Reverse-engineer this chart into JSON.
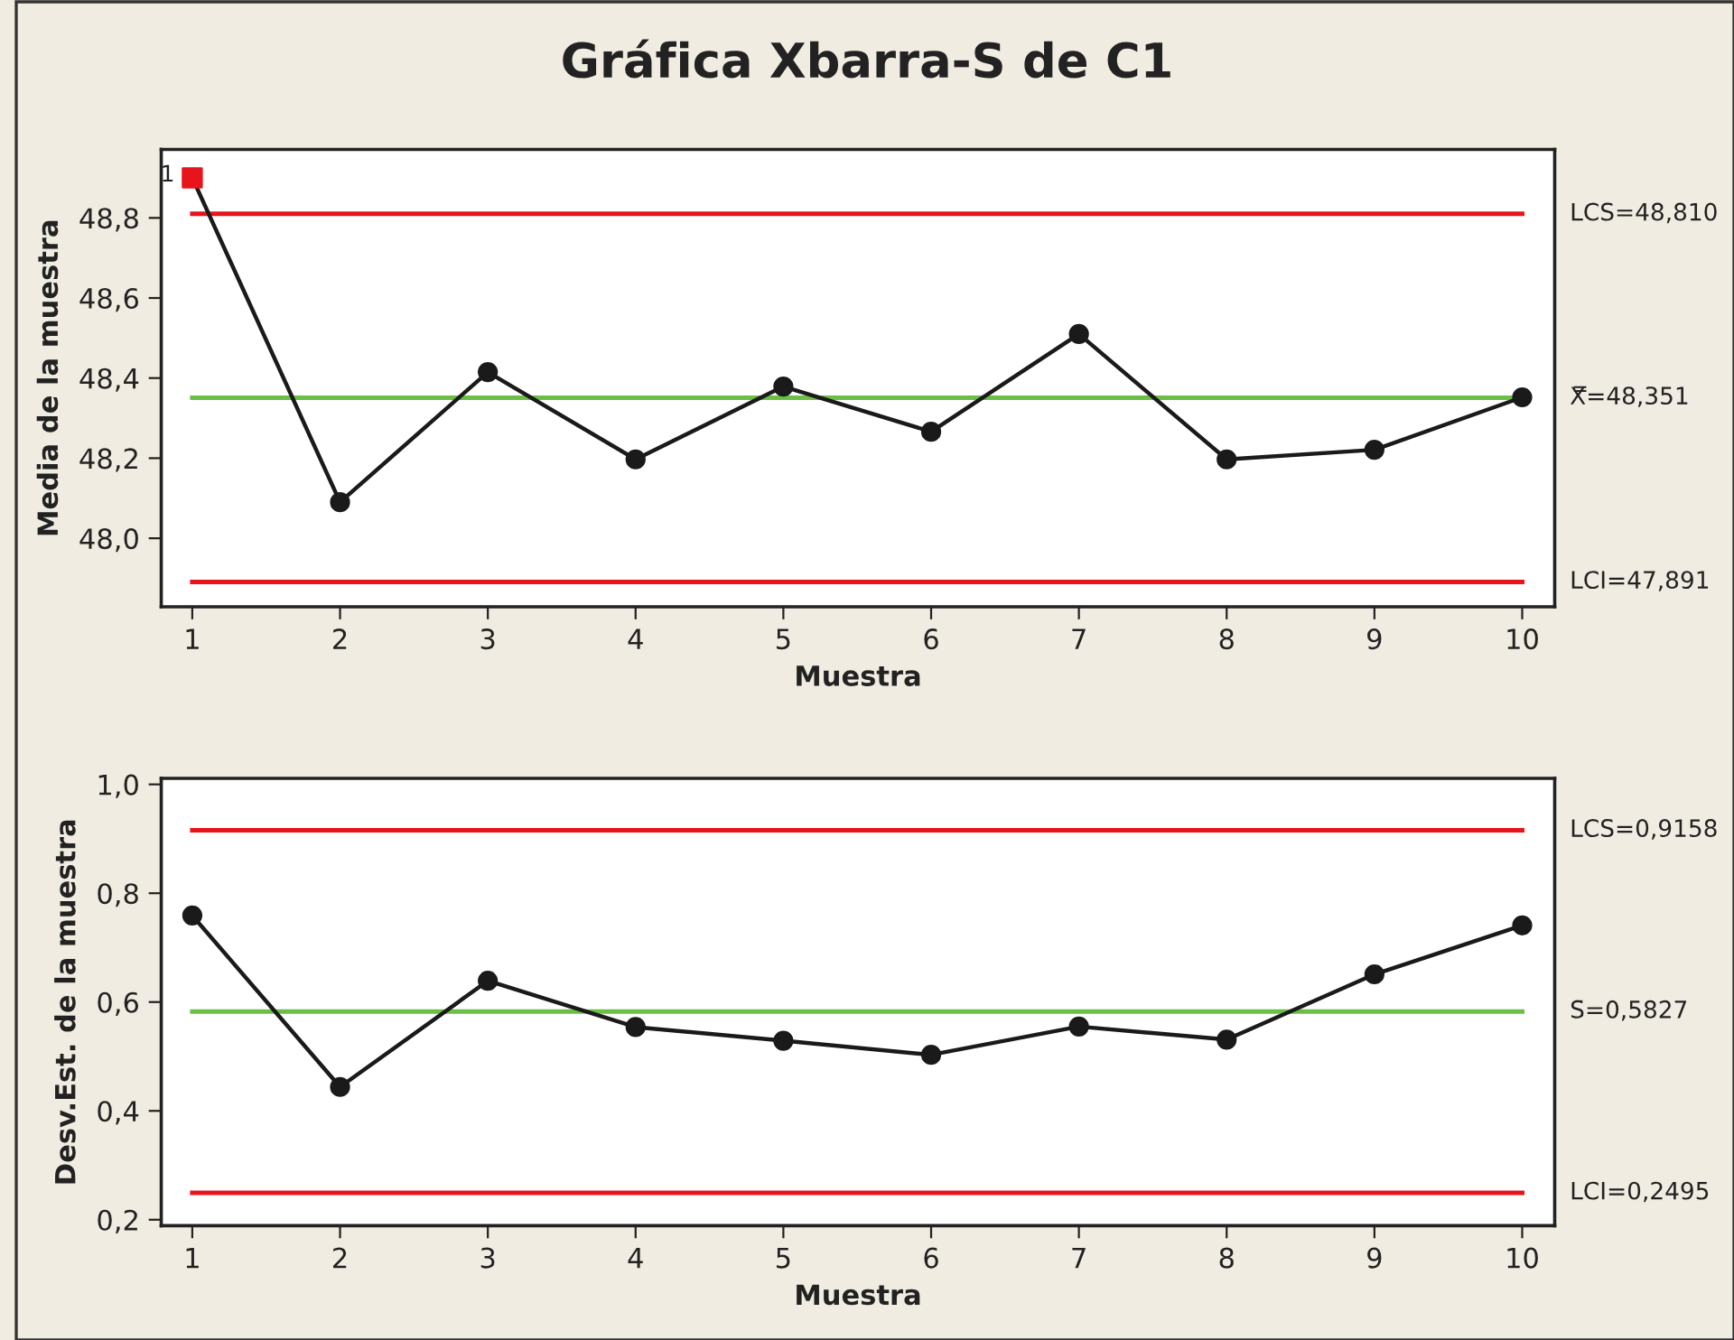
{
  "chart_data": [
    {
      "type": "line",
      "title": "Gráfica Xbarra-S de C1",
      "xlabel": "Muestra",
      "ylabel": "Media de la muestra",
      "x": [
        1,
        2,
        3,
        4,
        5,
        6,
        7,
        8,
        9,
        10
      ],
      "series": [
        {
          "color": "#1a1a1a",
          "marker": "circle",
          "values": [
            48.9,
            48.09,
            48.415,
            48.197,
            48.379,
            48.266,
            48.51,
            48.197,
            48.221,
            48.352
          ]
        },
        {
          "type": "scatter",
          "color": "#e8141b",
          "marker": "square",
          "x": [
            1
          ],
          "values": [
            48.9
          ]
        }
      ],
      "xlim": [
        0.79,
        10.22
      ],
      "xticks": [
        1,
        2,
        3,
        4,
        5,
        6,
        7,
        8,
        9,
        10
      ],
      "ylim": [
        47.829,
        48.971
      ],
      "yticks": [
        {
          "value": 48.0,
          "label": "48,0"
        },
        {
          "value": 48.2,
          "label": "48,2"
        },
        {
          "value": 48.4,
          "label": "48,4"
        },
        {
          "value": 48.6,
          "label": "48,6"
        },
        {
          "value": 48.8,
          "label": "48,8"
        }
      ],
      "ref_lines": [
        {
          "axis": "y",
          "value": 48.81,
          "label": "LCS=48,810",
          "color": "#e8141b"
        },
        {
          "axis": "y",
          "value": 48.351,
          "label": "X̿=48,351",
          "color": "#6cbf45"
        },
        {
          "axis": "y",
          "value": 47.891,
          "label": "LCI=47,891",
          "color": "#e8141b"
        }
      ],
      "annotations": [
        {
          "text": "1",
          "x": 1,
          "y": 48.9
        }
      ],
      "grid": false
    },
    {
      "type": "line",
      "xlabel": "Muestra",
      "ylabel": "Desv.Est. de la muestra",
      "x": [
        1,
        2,
        3,
        4,
        5,
        6,
        7,
        8,
        9,
        10
      ],
      "series": [
        {
          "color": "#1a1a1a",
          "marker": "circle",
          "values": [
            0.759,
            0.444,
            0.639,
            0.554,
            0.529,
            0.503,
            0.555,
            0.531,
            0.651,
            0.741
          ]
        }
      ],
      "xlim": [
        0.79,
        10.22
      ],
      "xticks": [
        1,
        2,
        3,
        4,
        5,
        6,
        7,
        8,
        9,
        10
      ],
      "ylim": [
        0.189,
        1.011
      ],
      "yticks": [
        {
          "value": 0.2,
          "label": "0,2"
        },
        {
          "value": 0.4,
          "label": "0,4"
        },
        {
          "value": 0.6,
          "label": "0,6"
        },
        {
          "value": 0.8,
          "label": "0,8"
        },
        {
          "value": 1.0,
          "label": "1,0"
        }
      ],
      "ref_lines": [
        {
          "axis": "y",
          "value": 0.9158,
          "label": "LCS=0,9158",
          "color": "#e8141b"
        },
        {
          "axis": "y",
          "value": 0.5827,
          "label": "S̄=0,5827",
          "color": "#6cbf45"
        },
        {
          "axis": "y",
          "value": 0.2495,
          "label": "LCI=0,2495",
          "color": "#e8141b"
        }
      ],
      "grid": false
    }
  ]
}
